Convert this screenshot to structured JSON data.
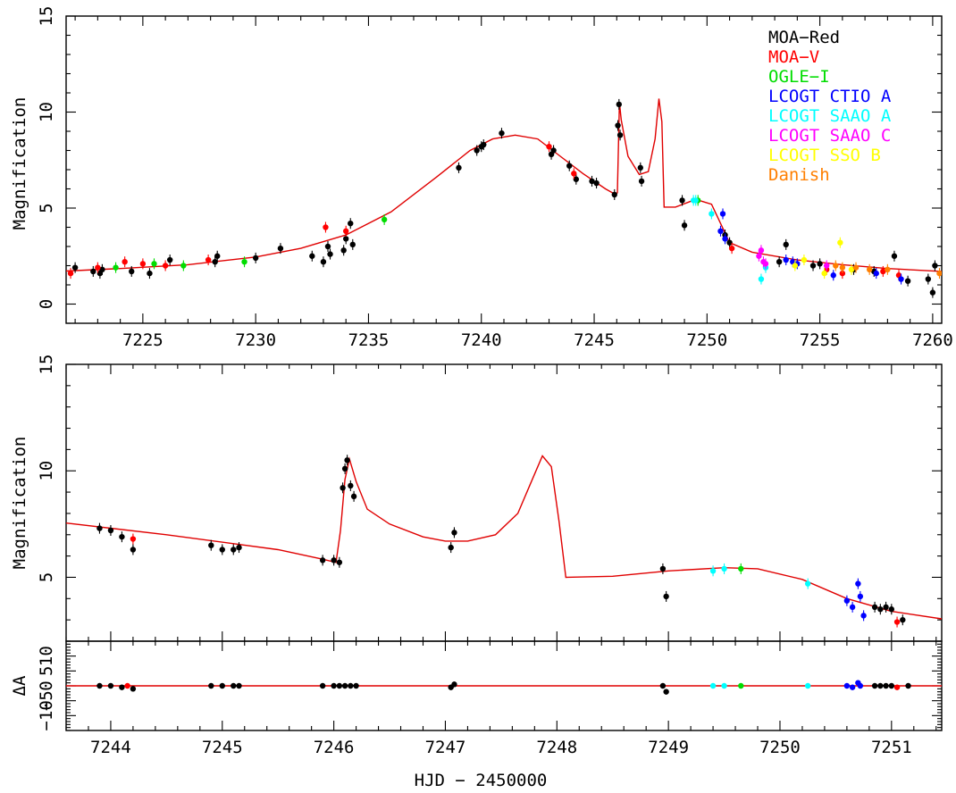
{
  "x_axis_label": "HJD − 2450000",
  "chart_data": [
    {
      "type": "scatter",
      "panel": "full light curve",
      "ylabel": "Magnification",
      "xlim": [
        7221.6,
        7260.4
      ],
      "ylim": [
        -1.0,
        15.0
      ],
      "xticks": [
        7225,
        7230,
        7235,
        7240,
        7245,
        7250,
        7255,
        7260
      ],
      "yticks": [
        0,
        5,
        10,
        15
      ],
      "legend_position": "top-right",
      "series": [
        {
          "name": "MOA−Red",
          "color": "#000000",
          "points": [
            [
              7222,
              1.9
            ],
            [
              7222.8,
              1.7
            ],
            [
              7223.1,
              1.6
            ],
            [
              7223.2,
              1.8
            ],
            [
              7224.5,
              1.7
            ],
            [
              7225.3,
              1.6
            ],
            [
              7226.2,
              2.3
            ],
            [
              7228.2,
              2.2
            ],
            [
              7228.3,
              2.5
            ],
            [
              7230.0,
              2.4
            ],
            [
              7231.1,
              2.9
            ],
            [
              7232.5,
              2.5
            ],
            [
              7233.0,
              2.2
            ],
            [
              7233.2,
              3.0
            ],
            [
              7233.3,
              2.6
            ],
            [
              7233.9,
              2.8
            ],
            [
              7234.0,
              3.4
            ],
            [
              7234.2,
              4.2
            ],
            [
              7234.3,
              3.1
            ],
            [
              7239.0,
              7.1
            ],
            [
              7239.8,
              8.0
            ],
            [
              7240.0,
              8.2
            ],
            [
              7240.1,
              8.3
            ],
            [
              7240.9,
              8.9
            ],
            [
              7243.1,
              7.8
            ],
            [
              7243.2,
              8.0
            ],
            [
              7243.9,
              7.2
            ],
            [
              7244.2,
              6.5
            ],
            [
              7244.9,
              6.4
            ],
            [
              7245.1,
              6.3
            ],
            [
              7245.9,
              5.7
            ],
            [
              7246.05,
              9.3
            ],
            [
              7246.1,
              10.4
            ],
            [
              7246.15,
              8.8
            ],
            [
              7247.05,
              7.1
            ],
            [
              7247.1,
              6.4
            ],
            [
              7248.9,
              5.4
            ],
            [
              7249.0,
              4.1
            ],
            [
              7250.8,
              3.6
            ],
            [
              7251.0,
              3.2
            ],
            [
              7253.2,
              2.2
            ],
            [
              7253.5,
              3.1
            ],
            [
              7254.7,
              2.0
            ],
            [
              7255.0,
              2.1
            ],
            [
              7256.5,
              1.8
            ],
            [
              7257.4,
              1.7
            ],
            [
              7258.3,
              2.5
            ],
            [
              7258.9,
              1.2
            ],
            [
              7259.8,
              1.3
            ],
            [
              7260.0,
              0.6
            ],
            [
              7260.1,
              2.0
            ]
          ]
        },
        {
          "name": "MOA−V",
          "color": "#ff0000",
          "points": [
            [
              7221.8,
              1.6
            ],
            [
              7223.0,
              1.9
            ],
            [
              7224.2,
              2.2
            ],
            [
              7225.0,
              2.1
            ],
            [
              7226.0,
              2.0
            ],
            [
              7227.9,
              2.3
            ],
            [
              7233.1,
              4.0
            ],
            [
              7234.0,
              3.8
            ],
            [
              7243.0,
              8.2
            ],
            [
              7244.1,
              6.8
            ],
            [
              7251.1,
              2.9
            ],
            [
              7255.3,
              1.8
            ],
            [
              7256.0,
              1.6
            ],
            [
              7257.8,
              1.7
            ],
            [
              7258.5,
              1.5
            ]
          ]
        },
        {
          "name": "OGLE−I",
          "color": "#00dd00",
          "points": [
            [
              7223.8,
              1.9
            ],
            [
              7225.5,
              2.1
            ],
            [
              7226.8,
              2.0
            ],
            [
              7229.5,
              2.2
            ],
            [
              7235.7,
              4.4
            ],
            [
              7249.6,
              5.4
            ]
          ]
        },
        {
          "name": "LCOGT CTIO A",
          "color": "#0000ff",
          "points": [
            [
              7250.6,
              3.8
            ],
            [
              7250.7,
              4.7
            ],
            [
              7250.8,
              3.4
            ],
            [
              7253.5,
              2.3
            ],
            [
              7253.8,
              2.2
            ],
            [
              7254.0,
              2.1
            ],
            [
              7255.6,
              1.5
            ],
            [
              7257.5,
              1.6
            ],
            [
              7258.6,
              1.3
            ]
          ]
        },
        {
          "name": "LCOGT SAAO A",
          "color": "#00ffff",
          "points": [
            [
              7249.4,
              5.4
            ],
            [
              7249.5,
              5.4
            ],
            [
              7250.2,
              4.7
            ],
            [
              7252.4,
              1.3
            ],
            [
              7252.6,
              1.9
            ]
          ]
        },
        {
          "name": "LCOGT SAAO C",
          "color": "#ff00ff",
          "points": [
            [
              7252.3,
              2.5
            ],
            [
              7252.4,
              2.8
            ],
            [
              7252.5,
              2.2
            ],
            [
              7252.6,
              2.1
            ],
            [
              7255.3,
              2.0
            ]
          ]
        },
        {
          "name": "LCOGT SSO B",
          "color": "#ffff00",
          "points": [
            [
              7253.9,
              2.0
            ],
            [
              7254.3,
              2.3
            ],
            [
              7255.2,
              1.6
            ],
            [
              7255.9,
              3.2
            ],
            [
              7256.4,
              1.8
            ]
          ]
        },
        {
          "name": "Danish",
          "color": "#ff7f00",
          "points": [
            [
              7255.7,
              2.0
            ],
            [
              7256.0,
              1.9
            ],
            [
              7256.6,
              1.9
            ],
            [
              7257.2,
              1.8
            ],
            [
              7258.0,
              1.8
            ],
            [
              7260.3,
              1.6
            ]
          ]
        }
      ],
      "model": [
        [
          7221.6,
          1.72
        ],
        [
          7224,
          1.85
        ],
        [
          7227,
          2.05
        ],
        [
          7230,
          2.45
        ],
        [
          7232,
          2.9
        ],
        [
          7234,
          3.6
        ],
        [
          7236,
          4.8
        ],
        [
          7238,
          6.6
        ],
        [
          7239.5,
          8.0
        ],
        [
          7240.5,
          8.6
        ],
        [
          7241.5,
          8.8
        ],
        [
          7242.5,
          8.6
        ],
        [
          7243.5,
          7.7
        ],
        [
          7244.5,
          6.8
        ],
        [
          7245.5,
          6.0
        ],
        [
          7245.95,
          5.7
        ],
        [
          7246.03,
          5.8
        ],
        [
          7246.12,
          10.5
        ],
        [
          7246.2,
          9.6
        ],
        [
          7246.5,
          7.7
        ],
        [
          7247.0,
          6.75
        ],
        [
          7247.4,
          6.9
        ],
        [
          7247.7,
          8.6
        ],
        [
          7247.87,
          10.7
        ],
        [
          7248.0,
          9.5
        ],
        [
          7248.1,
          5.05
        ],
        [
          7248.6,
          5.05
        ],
        [
          7249.5,
          5.45
        ],
        [
          7250.2,
          5.2
        ],
        [
          7251.0,
          3.2
        ],
        [
          7252,
          2.7
        ],
        [
          7254,
          2.3
        ],
        [
          7256,
          2.05
        ],
        [
          7258,
          1.85
        ],
        [
          7260.4,
          1.7
        ]
      ]
    },
    {
      "type": "scatter",
      "panel": "zoom",
      "ylabel": "Magnification",
      "xlim": [
        7243.6,
        7251.45
      ],
      "ylim": [
        2.0,
        15.0
      ],
      "xticks": [
        7244,
        7245,
        7246,
        7247,
        7248,
        7249,
        7250,
        7251
      ],
      "yticks": [
        5,
        10,
        15
      ],
      "series": [
        {
          "name": "MOA−Red",
          "color": "#000000",
          "points": [
            [
              7243.9,
              7.3
            ],
            [
              7244.0,
              7.2
            ],
            [
              7244.1,
              6.9
            ],
            [
              7244.2,
              6.3
            ],
            [
              7244.9,
              6.5
            ],
            [
              7245.0,
              6.3
            ],
            [
              7245.1,
              6.3
            ],
            [
              7245.15,
              6.4
            ],
            [
              7245.9,
              5.8
            ],
            [
              7246.0,
              5.8
            ],
            [
              7246.05,
              5.7
            ],
            [
              7246.08,
              9.2
            ],
            [
              7246.1,
              10.1
            ],
            [
              7246.12,
              10.5
            ],
            [
              7246.15,
              9.3
            ],
            [
              7246.18,
              8.8
            ],
            [
              7247.05,
              6.4
            ],
            [
              7247.08,
              7.1
            ],
            [
              7248.95,
              5.4
            ],
            [
              7248.98,
              4.1
            ],
            [
              7250.85,
              3.6
            ],
            [
              7250.9,
              3.5
            ],
            [
              7250.95,
              3.6
            ],
            [
              7251.0,
              3.5
            ],
            [
              7251.1,
              3.0
            ]
          ]
        },
        {
          "name": "MOA−V",
          "color": "#ff0000",
          "points": [
            [
              7244.2,
              6.8
            ],
            [
              7251.05,
              2.9
            ]
          ]
        },
        {
          "name": "OGLE−I",
          "color": "#00dd00",
          "points": [
            [
              7249.65,
              5.4
            ]
          ]
        },
        {
          "name": "LCOGT CTIO A",
          "color": "#0000ff",
          "points": [
            [
              7250.6,
              3.9
            ],
            [
              7250.65,
              3.6
            ],
            [
              7250.7,
              4.7
            ],
            [
              7250.72,
              4.1
            ],
            [
              7250.75,
              3.2
            ]
          ]
        },
        {
          "name": "LCOGT SAAO A",
          "color": "#00ffff",
          "points": [
            [
              7249.4,
              5.3
            ],
            [
              7249.5,
              5.4
            ],
            [
              7250.25,
              4.7
            ]
          ]
        }
      ],
      "model": [
        [
          7243.6,
          7.55
        ],
        [
          7244.5,
          7.0
        ],
        [
          7245.5,
          6.3
        ],
        [
          7245.9,
          5.85
        ],
        [
          7246.02,
          5.7
        ],
        [
          7246.06,
          7.2
        ],
        [
          7246.1,
          9.6
        ],
        [
          7246.14,
          10.55
        ],
        [
          7246.2,
          9.5
        ],
        [
          7246.3,
          8.2
        ],
        [
          7246.5,
          7.5
        ],
        [
          7246.8,
          6.9
        ],
        [
          7247.0,
          6.7
        ],
        [
          7247.2,
          6.7
        ],
        [
          7247.45,
          7.0
        ],
        [
          7247.65,
          8.0
        ],
        [
          7247.78,
          9.6
        ],
        [
          7247.87,
          10.7
        ],
        [
          7247.95,
          10.2
        ],
        [
          7248.02,
          7.6
        ],
        [
          7248.08,
          5.0
        ],
        [
          7248.5,
          5.05
        ],
        [
          7249.0,
          5.3
        ],
        [
          7249.5,
          5.45
        ],
        [
          7249.8,
          5.4
        ],
        [
          7250.2,
          4.9
        ],
        [
          7250.6,
          4.0
        ],
        [
          7251.0,
          3.4
        ],
        [
          7251.45,
          3.05
        ]
      ]
    },
    {
      "type": "scatter",
      "panel": "residuals",
      "ylabel": "ΔA",
      "xlim": [
        7243.6,
        7251.45
      ],
      "ylim": [
        -15.0,
        15.0
      ],
      "xticks": [
        7244,
        7245,
        7246,
        7247,
        7248,
        7249,
        7250,
        7251
      ],
      "yticks": [
        -10,
        -5,
        0,
        5,
        10
      ],
      "yticklabels": [
        "−10",
        "−5",
        "0",
        "5",
        "10"
      ],
      "series": [
        {
          "name": "MOA−Red",
          "color": "#000000",
          "points": [
            [
              7243.9,
              0
            ],
            [
              7244.0,
              0
            ],
            [
              7244.1,
              -0.5
            ],
            [
              7244.2,
              -1
            ],
            [
              7244.9,
              0
            ],
            [
              7245.0,
              0
            ],
            [
              7245.1,
              0
            ],
            [
              7245.15,
              0
            ],
            [
              7245.9,
              0
            ],
            [
              7246.0,
              0
            ],
            [
              7246.05,
              0
            ],
            [
              7246.1,
              0
            ],
            [
              7246.15,
              0
            ],
            [
              7246.2,
              0
            ],
            [
              7247.05,
              -0.5
            ],
            [
              7247.08,
              0.5
            ],
            [
              7248.95,
              0
            ],
            [
              7248.98,
              -2
            ],
            [
              7250.85,
              0
            ],
            [
              7250.9,
              0
            ],
            [
              7250.95,
              0
            ],
            [
              7251.0,
              0
            ],
            [
              7251.15,
              0
            ]
          ]
        },
        {
          "name": "MOA−V",
          "color": "#ff0000",
          "points": [
            [
              7244.15,
              0
            ],
            [
              7251.05,
              -0.5
            ]
          ]
        },
        {
          "name": "OGLE−I",
          "color": "#00dd00",
          "points": [
            [
              7249.65,
              0
            ]
          ]
        },
        {
          "name": "LCOGT CTIO A",
          "color": "#0000ff",
          "points": [
            [
              7250.6,
              0
            ],
            [
              7250.65,
              -0.5
            ],
            [
              7250.7,
              1
            ],
            [
              7250.72,
              0
            ]
          ]
        },
        {
          "name": "LCOGT SAAO A",
          "color": "#00ffff",
          "points": [
            [
              7249.4,
              0
            ],
            [
              7249.5,
              0
            ],
            [
              7250.25,
              0
            ]
          ]
        }
      ],
      "model": [
        [
          7243.6,
          0
        ],
        [
          7251.45,
          0
        ]
      ]
    }
  ]
}
